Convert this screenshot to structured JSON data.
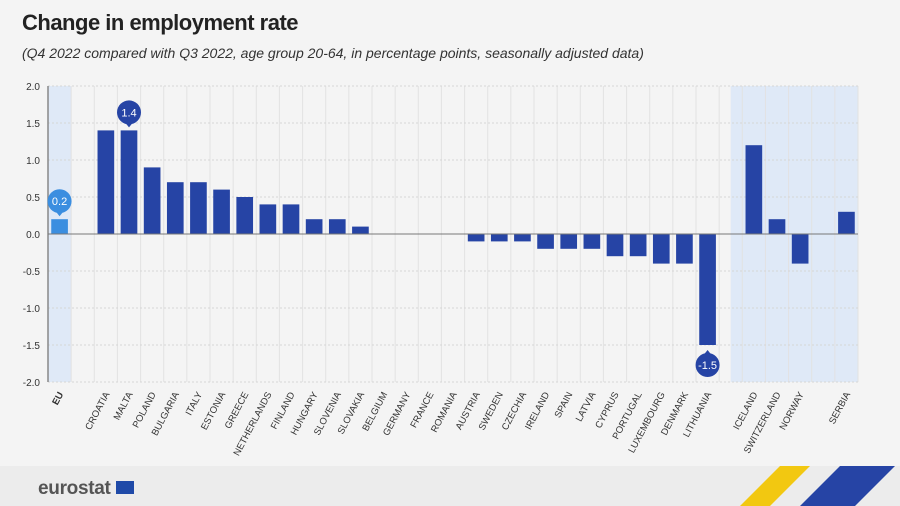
{
  "chart_data": {
    "type": "bar",
    "title": "Change in employment rate",
    "subtitle": "(Q4 2022 compared with Q3 2022, age group 20-64, in percentage points, seasonally adjusted data)",
    "xlabel": "",
    "ylabel": "",
    "ylim": [
      -2.0,
      2.0
    ],
    "yticks": [
      "2.0",
      "1.5",
      "1.0",
      "0.5",
      "0.0",
      "-0.5",
      "-1.0",
      "-1.5",
      "-2.0"
    ],
    "grid": true,
    "categories": [
      "EU",
      "",
      "CROATIA",
      "MALTA",
      "POLAND",
      "BULGARIA",
      "ITALY",
      "ESTONIA",
      "GREECE",
      "NETHERLANDS",
      "FINLAND",
      "HUNGARY",
      "SLOVENIA",
      "SLOVAKIA",
      "BELGIUM",
      "GERMANY",
      "FRANCE",
      "ROMANIA",
      "AUSTRIA",
      "SWEDEN",
      "CZECHIA",
      "IRELAND",
      "SPAIN",
      "LATVIA",
      "CYPRUS",
      "PORTUGAL",
      "LUXEMBOURG",
      "DENMARK",
      "LITHUANIA",
      "",
      "ICELAND",
      "SWITZERLAND",
      "NORWAY",
      "",
      "SERBIA"
    ],
    "values": [
      0.2,
      null,
      1.4,
      1.4,
      0.9,
      0.7,
      0.7,
      0.6,
      0.5,
      0.4,
      0.4,
      0.2,
      0.2,
      0.1,
      0,
      0,
      0,
      0,
      -0.1,
      -0.1,
      -0.1,
      -0.2,
      -0.2,
      -0.2,
      -0.3,
      -0.3,
      -0.4,
      -0.4,
      -1.5,
      null,
      1.2,
      0.2,
      -0.4,
      null,
      0.3
    ],
    "callouts": [
      {
        "category": "EU",
        "label": "0.2"
      },
      {
        "category": "MALTA",
        "label": "1.4"
      },
      {
        "category": "LITHUANIA",
        "label": "-1.5"
      }
    ],
    "colors": {
      "bar": "#2644a5",
      "eu_bar": "#3b8ee0",
      "highlight": "#dfe9f7",
      "eu_callout": "#3b8ee0",
      "callout": "#2644a5"
    }
  },
  "footer": {
    "logo": "eurostat"
  }
}
